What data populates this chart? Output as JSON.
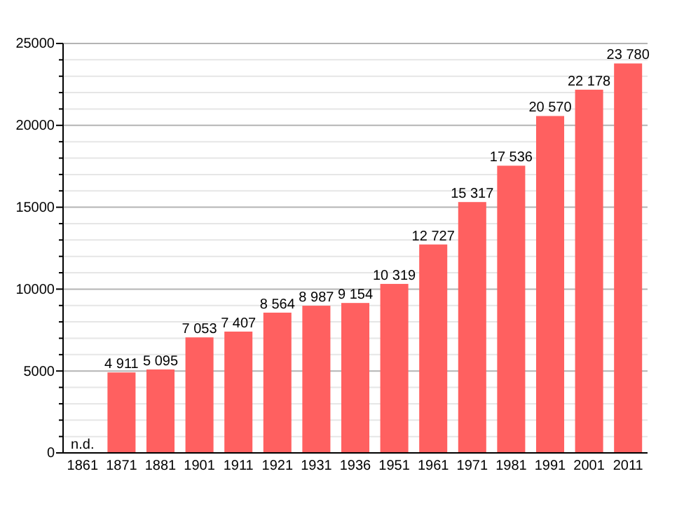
{
  "chart_data": {
    "type": "bar",
    "categories": [
      "1861",
      "1871",
      "1881",
      "1901",
      "1911",
      "1921",
      "1931",
      "1936",
      "1951",
      "1961",
      "1971",
      "1981",
      "1991",
      "2001",
      "2011"
    ],
    "values": [
      null,
      4911,
      5095,
      7053,
      7407,
      8564,
      8987,
      9154,
      10319,
      12727,
      15317,
      17536,
      20570,
      22178,
      23780
    ],
    "value_labels": [
      null,
      "4 911",
      "5 095",
      "7 053",
      "7 407",
      "8 564",
      "8 987",
      "9 154",
      "10 319",
      "12 727",
      "15 317",
      "17 536",
      "20 570",
      "22 178",
      "23 780"
    ],
    "color": "#ff6060",
    "ylim": [
      0,
      25000
    ],
    "yticks": [
      0,
      {
        "value": 1000,
        "label": null
      },
      {
        "value": 2000,
        "label": null
      },
      {
        "value": 3000,
        "label": null
      },
      {
        "value": 4000,
        "label": null
      },
      5000,
      {
        "value": 6000,
        "label": null
      },
      {
        "value": 7000,
        "label": null
      },
      {
        "value": 8000,
        "label": null
      },
      {
        "value": 9000,
        "label": null
      },
      10000,
      {
        "value": 11000,
        "label": null
      },
      {
        "value": 12000,
        "label": null
      },
      {
        "value": 13000,
        "label": null
      },
      {
        "value": 14000,
        "label": null
      },
      15000,
      {
        "value": 16000,
        "label": null
      },
      {
        "value": 17000,
        "label": null
      },
      {
        "value": 18000,
        "label": null
      },
      {
        "value": 19000,
        "label": null
      },
      20000,
      {
        "value": 21000,
        "label": null
      },
      {
        "value": 22000,
        "label": null
      },
      {
        "value": 23000,
        "label": null
      },
      {
        "value": 24000,
        "label": null
      },
      25000
    ],
    "grid": "y",
    "annotations": [
      "n.d."
    ]
  }
}
